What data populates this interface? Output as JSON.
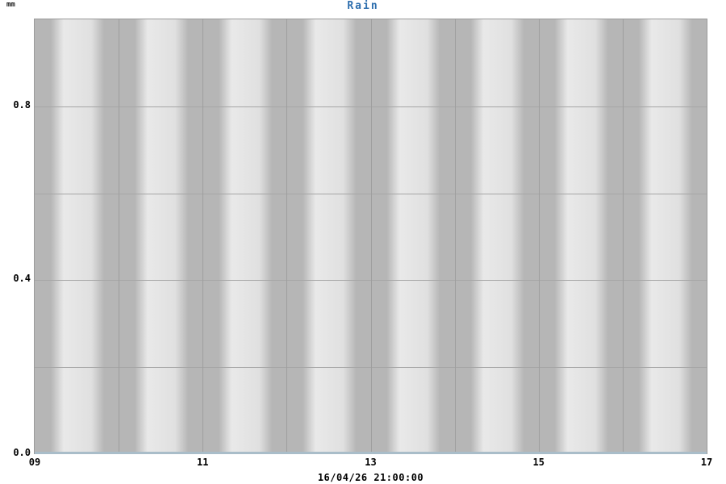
{
  "title": "Rain",
  "y_unit": "mm",
  "footer_timestamp": "16/04/26 21:00:00",
  "colors": {
    "title_text": "#2e6fae",
    "band_dark": "#b6b6b6",
    "band_light": "#e5e5e5",
    "gridline": "#a0a0a0",
    "plot_border": "#9a9a9a",
    "zero_rain_line": "#a9bdc9",
    "label_text": "#000000",
    "background": "#ffffff"
  },
  "chart_data": {
    "type": "line",
    "title": "Rain",
    "ylabel": "mm",
    "xlabel": "",
    "ylim": [
      0.0,
      1.0
    ],
    "grid": true,
    "legend_position": "none",
    "y_gridline_step": 0.2,
    "y_ticks": [
      {
        "value": 0.0,
        "label": "0.0"
      },
      {
        "value": 0.4,
        "label": "0.4"
      },
      {
        "value": 0.8,
        "label": "0.8"
      }
    ],
    "x_range_hours": [
      9,
      17
    ],
    "x_gridline_interval_hours": 1,
    "x_interior_gridline_hours": [
      10,
      11,
      12,
      13,
      14,
      15,
      16
    ],
    "x_ticks": [
      {
        "hour": 9,
        "label": "09"
      },
      {
        "hour": 11,
        "label": "11"
      },
      {
        "hour": 13,
        "label": "13"
      },
      {
        "hour": 15,
        "label": "15"
      },
      {
        "hour": 17,
        "label": "17"
      }
    ],
    "annotation": "16/04/26 21:00:00",
    "series": [
      {
        "name": "Rain",
        "unit": "mm",
        "x_hours": [
          9,
          10,
          11,
          12,
          13,
          14,
          15,
          16,
          17
        ],
        "values": [
          0,
          0,
          0,
          0,
          0,
          0,
          0,
          0,
          0
        ]
      }
    ]
  }
}
